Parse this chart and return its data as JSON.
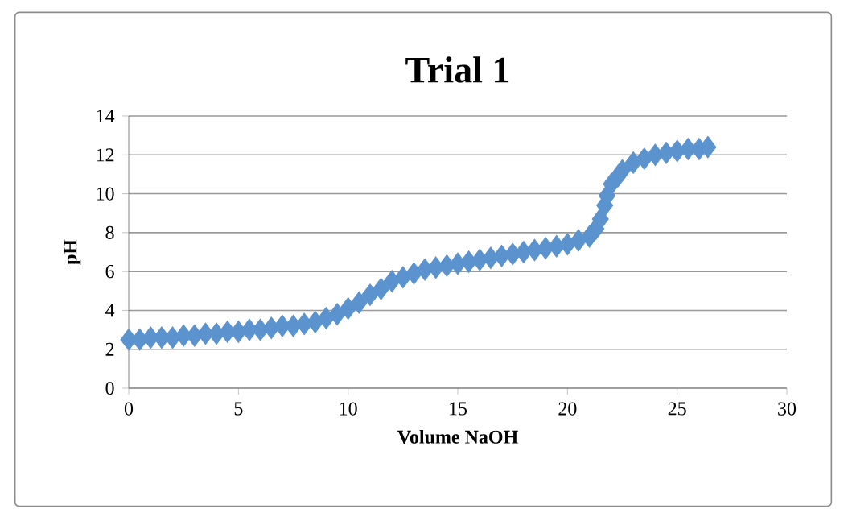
{
  "chart_data": {
    "type": "scatter",
    "title": "Trial 1",
    "xlabel": "Volume NaOH",
    "ylabel": "pH",
    "color": "#5b93cf",
    "marker": "diamond",
    "grid": "y",
    "xlim": [
      0,
      30
    ],
    "xticks": [
      0,
      5,
      10,
      15,
      20,
      25,
      30
    ],
    "ylim": [
      0,
      14
    ],
    "yticks": [
      0,
      2,
      4,
      6,
      8,
      10,
      12,
      14
    ],
    "x": [
      0,
      0.5,
      1,
      1.5,
      2,
      2.5,
      3,
      3.5,
      4,
      4.5,
      5,
      5.5,
      6,
      6.5,
      7,
      7.5,
      8,
      8.5,
      9,
      9.5,
      10,
      10.5,
      11,
      11.5,
      12,
      12.5,
      13,
      13.5,
      14,
      14.5,
      15,
      15.5,
      16,
      16.5,
      17,
      17.5,
      18,
      18.5,
      19,
      19.5,
      20,
      20.5,
      21,
      21.3,
      21.5,
      21.7,
      21.8,
      22,
      22.3,
      22.5,
      23,
      23.5,
      24,
      24.5,
      25,
      25.5,
      26,
      26.4
    ],
    "values": [
      2.5,
      2.5,
      2.6,
      2.6,
      2.6,
      2.7,
      2.7,
      2.8,
      2.8,
      2.9,
      2.9,
      3.0,
      3.0,
      3.1,
      3.2,
      3.2,
      3.3,
      3.4,
      3.6,
      3.8,
      4.1,
      4.4,
      4.8,
      5.1,
      5.5,
      5.7,
      5.9,
      6.1,
      6.2,
      6.3,
      6.4,
      6.5,
      6.6,
      6.7,
      6.8,
      6.9,
      7.0,
      7.1,
      7.2,
      7.3,
      7.4,
      7.6,
      7.8,
      8.2,
      8.7,
      9.4,
      9.9,
      10.5,
      10.9,
      11.2,
      11.6,
      11.8,
      12.0,
      12.1,
      12.2,
      12.3,
      12.3,
      12.4
    ]
  }
}
